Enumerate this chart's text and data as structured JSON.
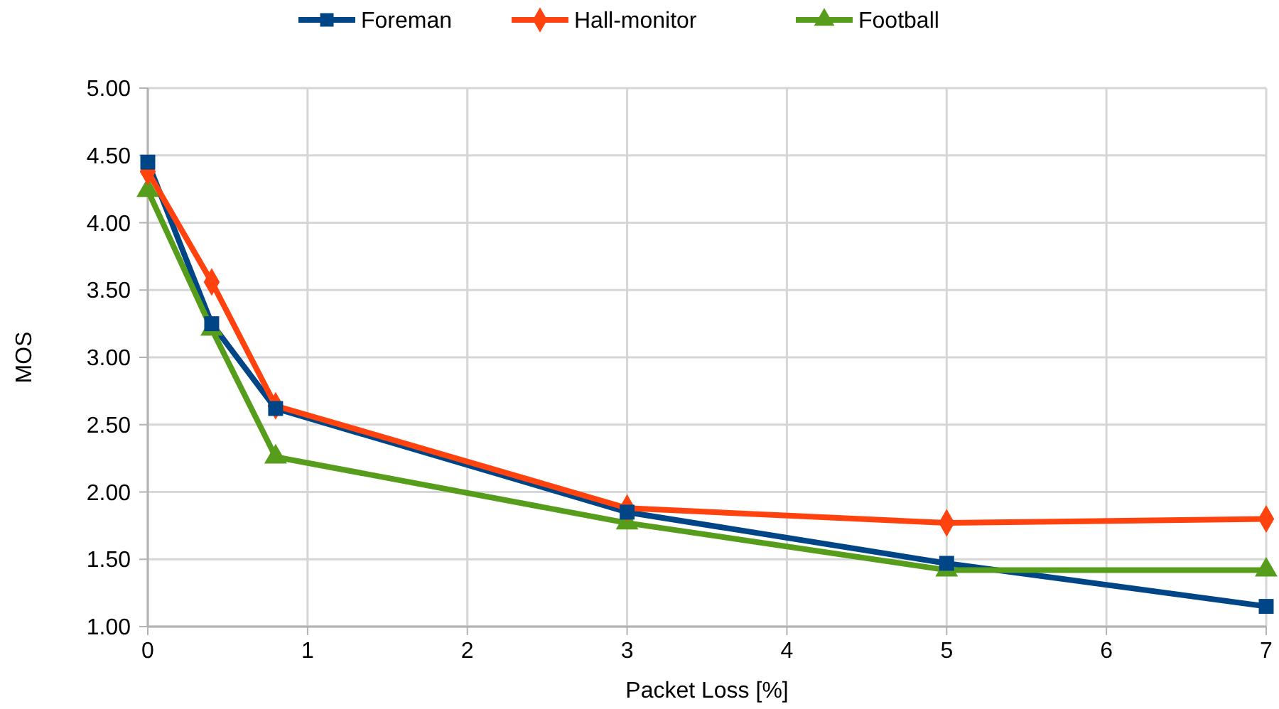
{
  "chart_data": {
    "type": "line",
    "xlabel": "Packet Loss [%]",
    "ylabel": "MOS",
    "x": [
      0,
      0.4,
      0.8,
      3,
      5,
      7
    ],
    "series": [
      {
        "name": "Foreman",
        "color": "#004586",
        "marker": "square",
        "values": [
          4.45,
          3.25,
          2.62,
          1.85,
          1.47,
          1.15
        ]
      },
      {
        "name": "Hall-monitor",
        "color": "#ff420e",
        "marker": "diamond",
        "values": [
          4.38,
          3.56,
          2.64,
          1.88,
          1.77,
          1.8
        ]
      },
      {
        "name": "Football",
        "color": "#579d1c",
        "marker": "triangle",
        "values": [
          4.24,
          3.21,
          2.26,
          1.77,
          1.42,
          1.42
        ]
      }
    ],
    "xlim": [
      0,
      7
    ],
    "xticks": [
      0,
      1,
      2,
      3,
      4,
      5,
      6,
      7
    ],
    "ylim": [
      1,
      5
    ],
    "yticks": [
      {
        "value": 1,
        "label": "1.00"
      },
      {
        "value": 1.5,
        "label": "1.50"
      },
      {
        "value": 2,
        "label": "2.00"
      },
      {
        "value": 2.5,
        "label": "2.50"
      },
      {
        "value": 3,
        "label": "3.00"
      },
      {
        "value": 3.5,
        "label": "3.50"
      },
      {
        "value": 4,
        "label": "4.00"
      },
      {
        "value": 4.5,
        "label": "4.50"
      },
      {
        "value": 5,
        "label": "5.00"
      }
    ],
    "grid": true,
    "legend": "top",
    "line_style": "solid"
  }
}
